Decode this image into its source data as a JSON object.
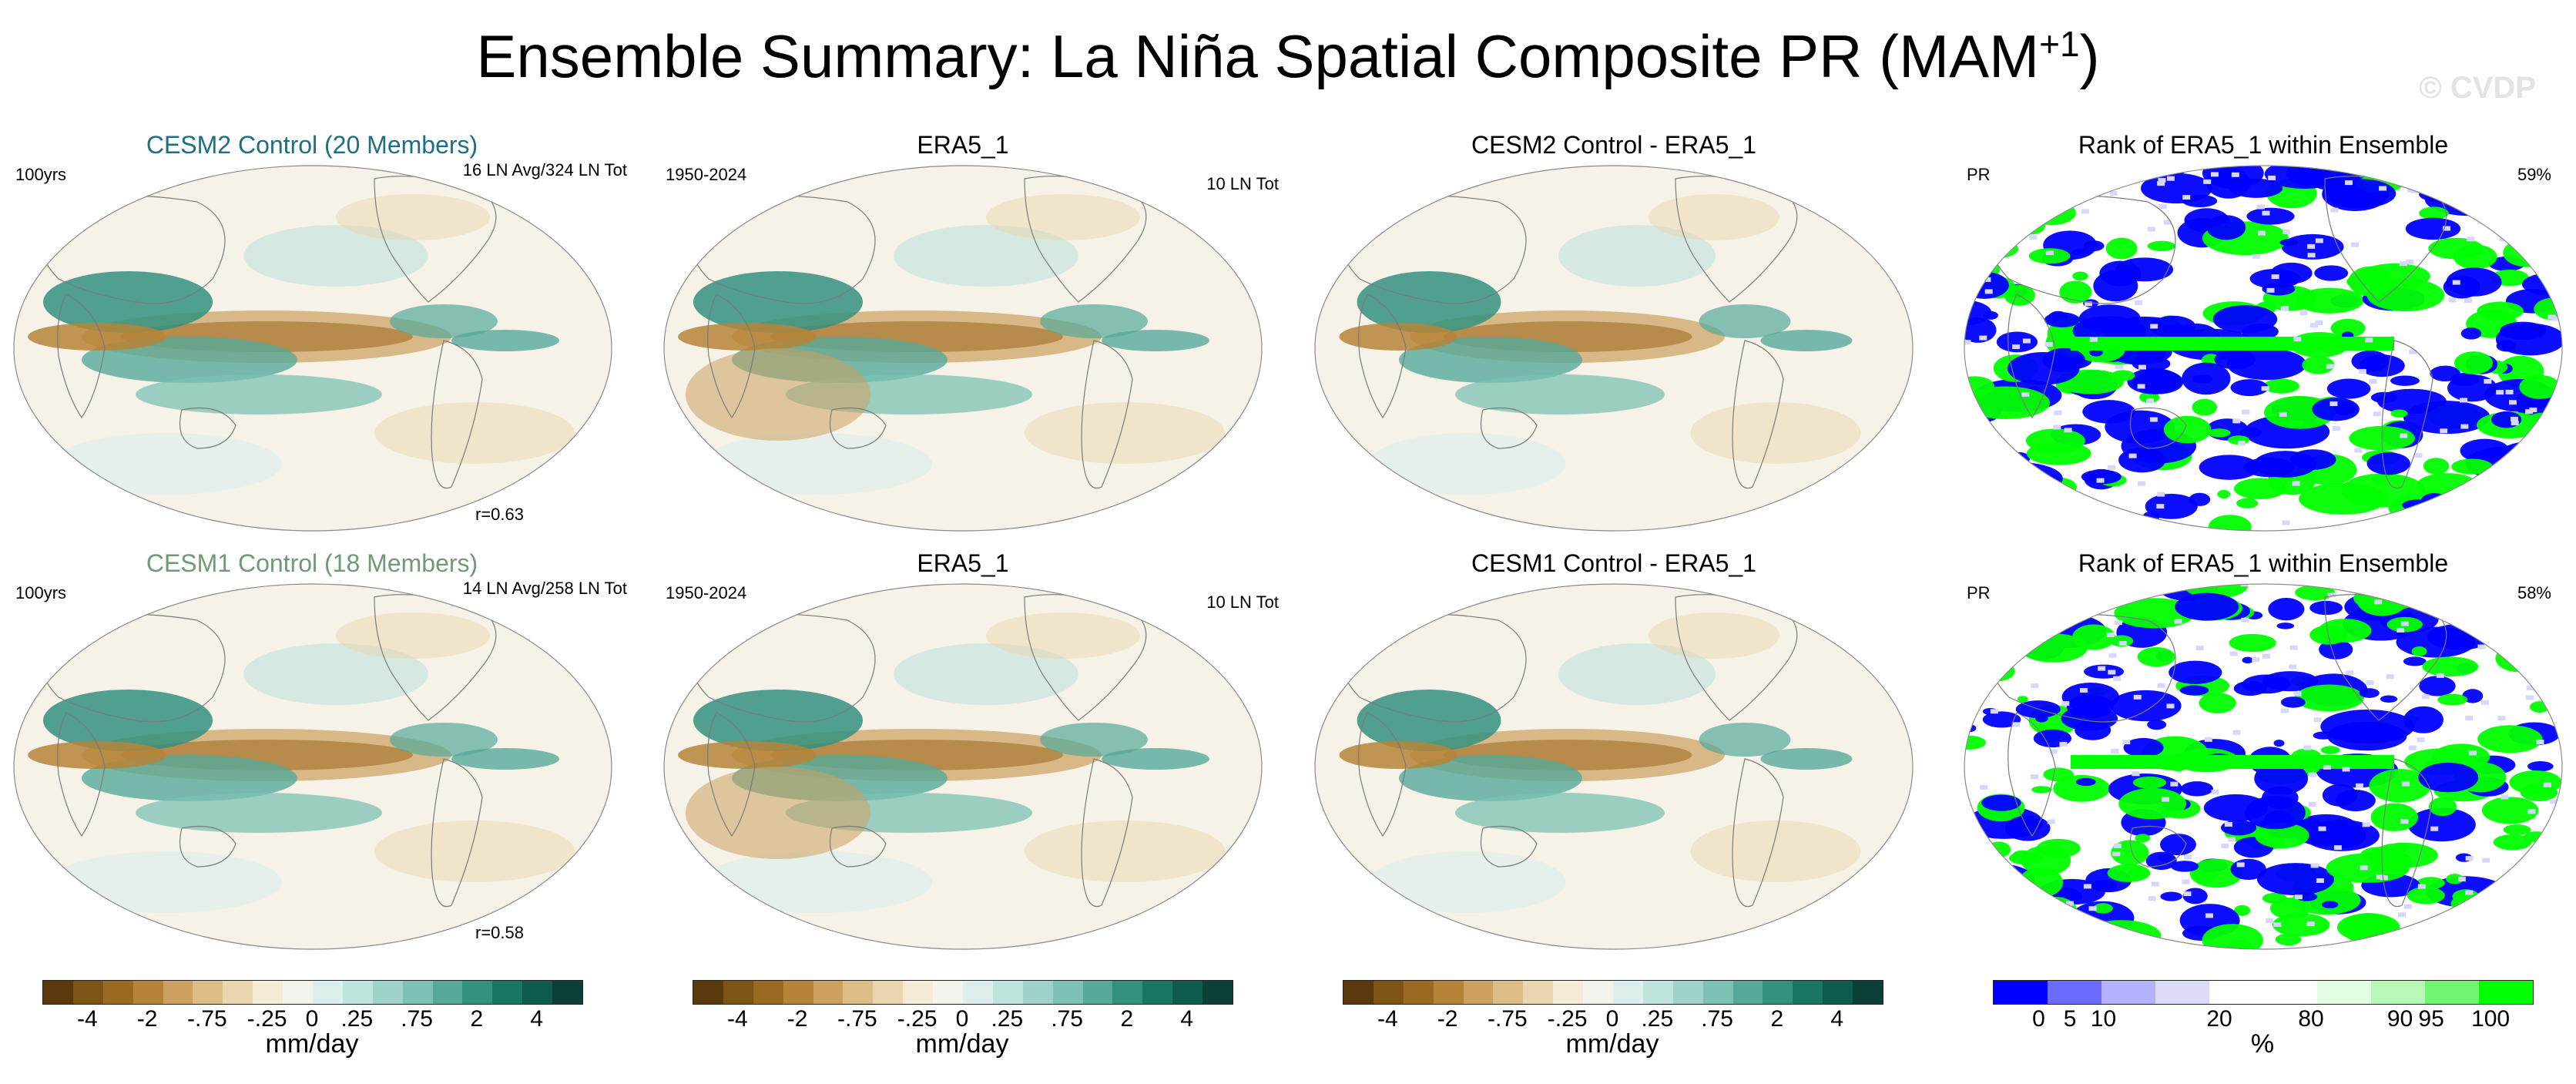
{
  "title": {
    "main": "Ensemble Summary: La Niña Spatial Composite PR (MAM",
    "sup": "+1",
    "end": ")"
  },
  "watermark": "© CVDP",
  "colors": {
    "title_row1": "#1f6f84",
    "title_row2": "#6f9a72",
    "ocean": "#f6f2e8",
    "coast": "#7a7a7a",
    "brown_strong": "#8c5a17",
    "teal_strong": "#147a6e",
    "rank_blue": "#0000ff",
    "rank_green": "#00ff00"
  },
  "rows": [
    {
      "panels": [
        {
          "title": "CESM2 Control (20 Members)",
          "left": "100yrs",
          "right": "16 LN Avg/324 LN Tot",
          "bottom": "r=0.63",
          "kind": "model"
        },
        {
          "title": "ERA5_1",
          "left": "1950-2024",
          "right": "10 LN Tot",
          "bottom": "",
          "kind": "obs"
        },
        {
          "title": "CESM2 Control - ERA5_1",
          "left": "",
          "right": "",
          "bottom": "",
          "kind": "diff"
        },
        {
          "title": "Rank of ERA5_1 within Ensemble",
          "left": "PR",
          "right": "59%",
          "bottom": "",
          "kind": "rank"
        }
      ]
    },
    {
      "panels": [
        {
          "title": "CESM1 Control (18 Members)",
          "left": "100yrs",
          "right": "14 LN Avg/258 LN Tot",
          "bottom": "r=0.58",
          "kind": "model"
        },
        {
          "title": "ERA5_1",
          "left": "1950-2024",
          "right": "10 LN Tot",
          "bottom": "",
          "kind": "obs"
        },
        {
          "title": "CESM1 Control - ERA5_1",
          "left": "",
          "right": "",
          "bottom": "",
          "kind": "diff"
        },
        {
          "title": "Rank of ERA5_1 within Ensemble",
          "left": "PR",
          "right": "58%",
          "bottom": "",
          "kind": "rank"
        }
      ]
    }
  ],
  "colorbars": [
    {
      "unit": "mm/day",
      "ticks": [
        "-4",
        "-2",
        "-.75",
        "-.25",
        "0",
        ".25",
        ".75",
        "2",
        "4"
      ],
      "colors": [
        "#5a3a0c",
        "#7d5316",
        "#9a6a22",
        "#b68438",
        "#cca05e",
        "#ddbd86",
        "#ead6ae",
        "#f4ead6",
        "#f3f3ee",
        "#dcefec",
        "#bfe3dd",
        "#9fd3c9",
        "#7cc1b4",
        "#56a99a",
        "#33907f",
        "#1b7565",
        "#0f5b4e",
        "#0a4035"
      ]
    },
    {
      "unit": "mm/day",
      "ticks": [
        "-4",
        "-2",
        "-.75",
        "-.25",
        "0",
        ".25",
        ".75",
        "2",
        "4"
      ],
      "colors": [
        "#5a3a0c",
        "#7d5316",
        "#9a6a22",
        "#b68438",
        "#cca05e",
        "#ddbd86",
        "#ead6ae",
        "#f4ead6",
        "#f3f3ee",
        "#dcefec",
        "#bfe3dd",
        "#9fd3c9",
        "#7cc1b4",
        "#56a99a",
        "#33907f",
        "#1b7565",
        "#0f5b4e",
        "#0a4035"
      ]
    },
    {
      "unit": "mm/day",
      "ticks": [
        "-4",
        "-2",
        "-.75",
        "-.25",
        "0",
        ".25",
        ".75",
        "2",
        "4"
      ],
      "colors": [
        "#5a3a0c",
        "#7d5316",
        "#9a6a22",
        "#b68438",
        "#cca05e",
        "#ddbd86",
        "#ead6ae",
        "#f4ead6",
        "#f3f3ee",
        "#dcefec",
        "#bfe3dd",
        "#9fd3c9",
        "#7cc1b4",
        "#56a99a",
        "#33907f",
        "#1b7565",
        "#0f5b4e",
        "#0a4035"
      ]
    },
    {
      "unit": "%",
      "ticks": [
        "0",
        "5",
        "10",
        "20",
        "80",
        "90",
        "95",
        "100"
      ],
      "colors": [
        "#0000ff",
        "#6b6bff",
        "#b2b2ff",
        "#dcdcfa",
        "#ffffff",
        "#ffffff",
        "#e3fde3",
        "#b7f8b7",
        "#71f471",
        "#00ff00"
      ]
    }
  ]
}
